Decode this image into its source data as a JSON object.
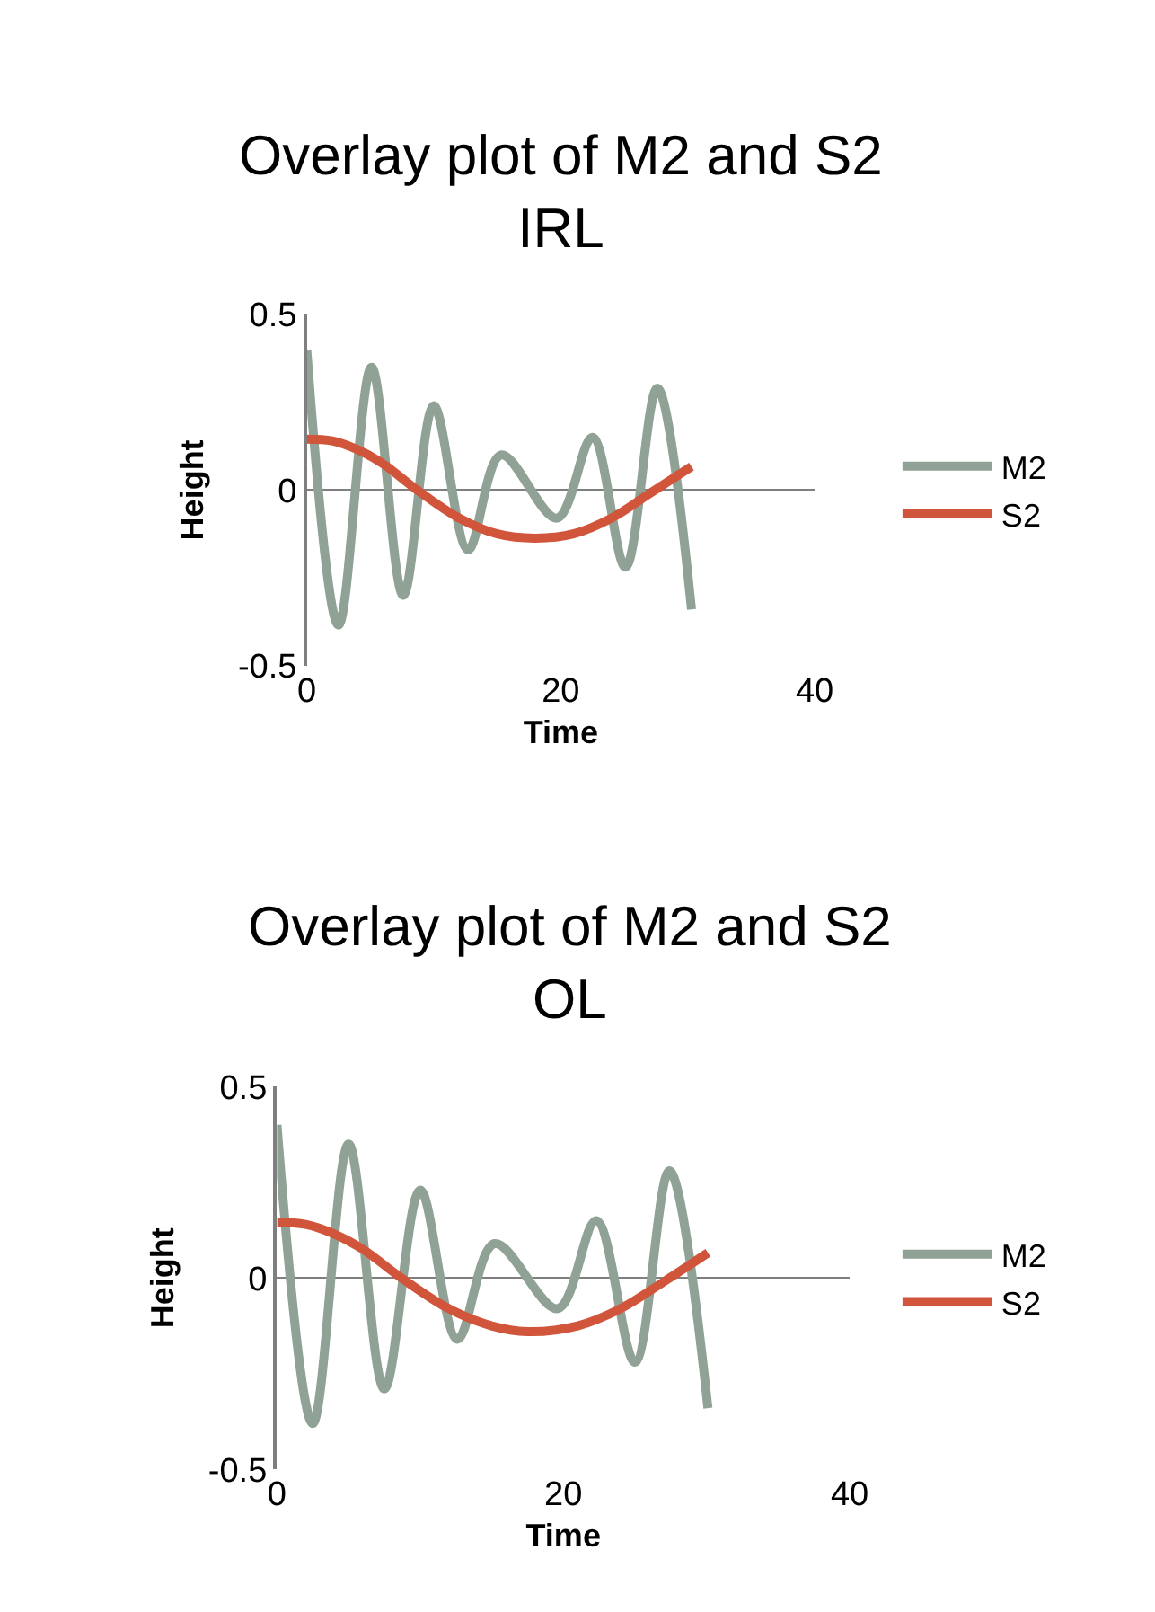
{
  "chart_data": [
    {
      "type": "line",
      "title": "Overlay plot of M2 and S2 IRL",
      "xlabel": "Time",
      "ylabel": "Height",
      "xlim": [
        0,
        40
      ],
      "xticks": [
        0,
        20,
        40
      ],
      "ylim": [
        -0.5,
        0.5
      ],
      "yticks": [
        -0.5,
        0,
        0.5
      ],
      "grid": "y",
      "legend": "right",
      "marker": "none",
      "line_style": "solid",
      "series": [
        {
          "name": "M2",
          "color": "#8fa295",
          "x": [
            0,
            2.5,
            5.1,
            7.6,
            10.0,
            12.7,
            15.3,
            19.7,
            22.5,
            25.1,
            27.6,
            30.3
          ],
          "values": [
            0.4,
            -0.385,
            0.35,
            -0.3,
            0.24,
            -0.17,
            0.1,
            -0.08,
            0.15,
            -0.22,
            0.29,
            -0.34
          ]
        },
        {
          "name": "S2",
          "color": "#d0553b",
          "x": [
            0,
            2,
            4,
            6,
            8.7,
            12,
            15,
            18,
            21,
            24,
            27,
            30.3
          ],
          "values": [
            0.145,
            0.14,
            0.115,
            0.075,
            0,
            -0.08,
            -0.125,
            -0.137,
            -0.125,
            -0.08,
            -0.01,
            0.067
          ]
        }
      ]
    },
    {
      "type": "line",
      "title": "Overlay plot of M2 and S2 OL",
      "xlabel": "Time",
      "ylabel": "Height",
      "xlim": [
        0,
        40
      ],
      "xticks": [
        0,
        20,
        40
      ],
      "ylim": [
        -0.5,
        0.5
      ],
      "yticks": [
        -0.5,
        0,
        0.5
      ],
      "grid": "y",
      "legend": "right",
      "marker": "none",
      "line_style": "solid",
      "series": [
        {
          "name": "M2",
          "color": "#8fa295",
          "x": [
            0,
            2.5,
            5.0,
            7.5,
            10.0,
            12.6,
            15.2,
            19.6,
            22.3,
            25.0,
            27.4,
            30.1
          ],
          "values": [
            0.4,
            -0.38,
            0.35,
            -0.29,
            0.23,
            -0.16,
            0.09,
            -0.08,
            0.15,
            -0.22,
            0.28,
            -0.34
          ]
        },
        {
          "name": "S2",
          "color": "#d0553b",
          "x": [
            0,
            2,
            4,
            6,
            8.7,
            12,
            15,
            17.5,
            21,
            24,
            27,
            30.1
          ],
          "values": [
            0.145,
            0.14,
            0.115,
            0.075,
            0,
            -0.08,
            -0.125,
            -0.14,
            -0.125,
            -0.08,
            -0.01,
            0.066
          ]
        }
      ]
    }
  ]
}
